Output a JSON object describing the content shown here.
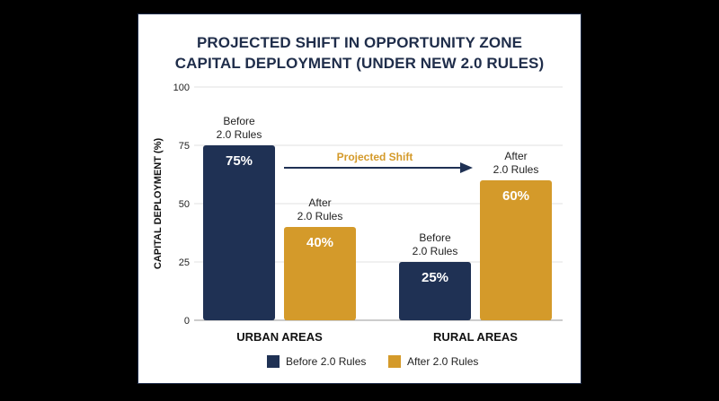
{
  "chart_data": {
    "type": "bar",
    "title_lines": [
      "PROJECTED SHIFT IN OPPORTUNITY ZONE",
      "CAPITAL DEPLOYMENT (UNDER NEW 2.0 RULES)"
    ],
    "xlabel": "",
    "ylabel": "CAPITAL DEPLOYMENT (%)",
    "ylim": [
      0,
      100
    ],
    "yticks": [
      "0",
      "25",
      "50",
      "75",
      "100"
    ],
    "grid": true,
    "categories": [
      "URBAN AREAS",
      "RURAL AREAS"
    ],
    "series": [
      {
        "name": "Before 2.0 Rules",
        "color": "#1f3154",
        "values": [
          75,
          25
        ],
        "value_labels": [
          "75%",
          "25%"
        ],
        "bar_labels": [
          [
            "Before",
            "2.0 Rules"
          ],
          [
            "Before",
            "2.0 Rules"
          ]
        ]
      },
      {
        "name": "After 2.0 Rules",
        "color": "#d49a2a",
        "values": [
          40,
          60
        ],
        "value_labels": [
          "40%",
          "60%"
        ],
        "bar_labels": [
          [
            "After",
            "2.0 Rules"
          ],
          [
            "After",
            "2.0 Rules"
          ]
        ]
      }
    ],
    "annotation": {
      "text": "Projected Shift",
      "color": "#d49a2a",
      "arrow_color": "#1f3154"
    },
    "legend_position": "bottom"
  }
}
